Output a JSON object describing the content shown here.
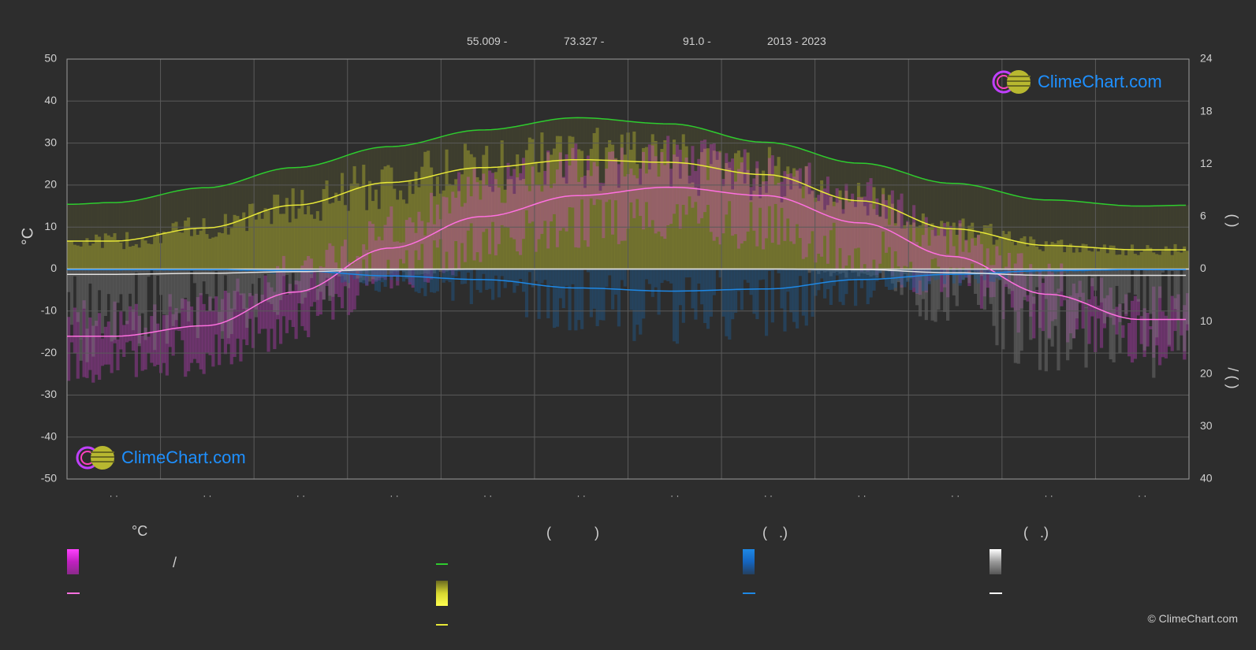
{
  "header": {
    "lat": "55.009 -",
    "lon": "73.327 -",
    "elev": "91.0 -",
    "years": "2013 - 2023"
  },
  "axes": {
    "left_unit": "°C",
    "right_upper_label": "(   )",
    "right_lower_label": "/    (   )",
    "left_ticks": [
      "50",
      "40",
      "30",
      "20",
      "10",
      "0",
      "-10",
      "-20",
      "-30",
      "-40",
      "-50"
    ],
    "right_upper_ticks": [
      "24",
      "18",
      "12",
      "6",
      "0"
    ],
    "right_lower_ticks": [
      "10",
      "20",
      "30",
      "40"
    ],
    "month_labels": [
      "· ·",
      "· ·",
      "· ·",
      "· ·",
      "· ·",
      "· ·",
      "· ·",
      "· ·",
      "· ·",
      "· ·",
      "· ·",
      "· ·"
    ]
  },
  "legend": {
    "col1_title": "°C",
    "col1_item1": "/",
    "col2_title": "(           )",
    "col3_title": "(   .)",
    "col4_title": "(   .)"
  },
  "logo_text": "ClimeChart.com",
  "copyright": "© ClimeChart.com",
  "colors": {
    "background": "#2d2d2d",
    "grid": "#5a5a5a",
    "daylight": "#2ecc2e",
    "sunshine": "#e8e838",
    "temp_mean": "#ff70e0",
    "temp_fill": "#e040e0",
    "rain": "#1e88e5",
    "snow": "#e0e0e0"
  },
  "chart_data": {
    "type": "line",
    "x_unit": "day_of_year",
    "temp_ylim": [
      -50,
      50
    ],
    "hours_ylim": [
      0,
      24
    ],
    "precip_ylim": [
      0,
      40
    ],
    "x": [
      0,
      15,
      45,
      74,
      105,
      135,
      166,
      196,
      227,
      258,
      288,
      319,
      349,
      365
    ],
    "series": [
      {
        "key": "daylight_hours",
        "axis": "hours",
        "values": [
          7.4,
          7.6,
          9.3,
          11.6,
          14.0,
          15.9,
          17.3,
          16.6,
          14.5,
          12.1,
          9.8,
          7.9,
          7.2,
          7.3
        ]
      },
      {
        "key": "sunshine_hours",
        "axis": "hours",
        "values": [
          3.2,
          3.2,
          4.7,
          7.3,
          9.9,
          11.6,
          12.5,
          12.2,
          10.8,
          7.8,
          4.6,
          2.7,
          2.2,
          2.2
        ]
      },
      {
        "key": "temp_mean",
        "axis": "temp",
        "values": [
          -16,
          -16,
          -13.5,
          -5.5,
          5,
          12.5,
          17.5,
          19.5,
          17.5,
          11,
          3,
          -6,
          -12,
          -12
        ]
      },
      {
        "key": "temp_max_avg",
        "axis": "temp",
        "values": [
          -12,
          -12,
          -9,
          -1,
          10,
          20,
          25,
          27,
          24,
          17,
          7,
          -3,
          -9,
          -9
        ]
      },
      {
        "key": "temp_min_avg",
        "axis": "temp",
        "values": [
          -22,
          -22,
          -20,
          -12,
          0,
          6,
          11,
          13,
          10,
          4,
          -3,
          -11,
          -17,
          -17
        ]
      },
      {
        "key": "rain_monthly_mm",
        "axis": "precip",
        "values": [
          0.1,
          0.1,
          0.1,
          0.3,
          1.3,
          2.0,
          3.6,
          4.2,
          3.8,
          2.0,
          1.0,
          0.3,
          0.1,
          0.1
        ]
      },
      {
        "key": "snow_monthly_mm",
        "axis": "precip",
        "values": [
          1.0,
          1.0,
          0.8,
          0.5,
          0.1,
          0.0,
          0.0,
          0.0,
          0.0,
          0.1,
          0.7,
          1.2,
          1.2,
          1.2
        ]
      }
    ]
  }
}
